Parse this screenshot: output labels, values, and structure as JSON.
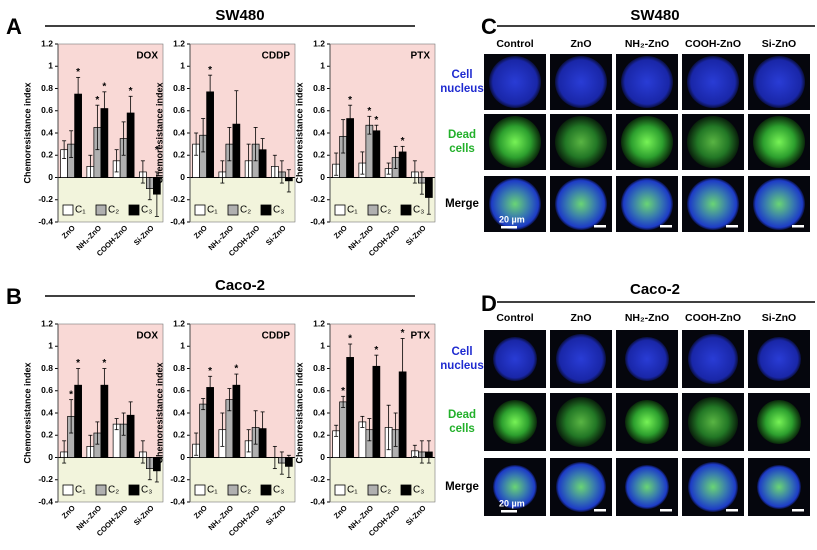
{
  "panels": [
    {
      "letter": "A",
      "cell_line": "SW480"
    },
    {
      "letter": "B",
      "cell_line": "Caco-2"
    }
  ],
  "images": [
    {
      "letter": "C",
      "cell_line": "SW480",
      "columns": [
        "Control",
        "ZnO",
        "NH₂-ZnO",
        "COOH-ZnO",
        "Si-ZnO"
      ],
      "rows": [
        [
          "Cell",
          "nucleus"
        ],
        [
          "Dead",
          "cells"
        ],
        [
          "Merge"
        ]
      ],
      "scale_bar": "20 µm"
    },
    {
      "letter": "D",
      "cell_line": "Caco-2",
      "columns": [
        "Control",
        "ZnO",
        "NH₂-ZnO",
        "COOH-ZnO",
        "Si-ZnO"
      ],
      "rows": [
        [
          "Cell",
          "nucleus"
        ],
        [
          "Dead",
          "cells"
        ],
        [
          "Merge"
        ]
      ],
      "scale_bar": "20 µm"
    }
  ],
  "chart_data": [
    {
      "type": "bar",
      "title": "DOX",
      "y_label": "Chemoresistance index",
      "categories": [
        "ZnO",
        "NH₂-ZnO",
        "COOH-ZnO",
        "Si-ZnO"
      ],
      "series": [
        {
          "name": "C₁",
          "color": "#ffffff",
          "values": [
            0.25,
            0.1,
            0.15,
            0.05
          ],
          "errors": [
            0.08,
            0.1,
            0.1,
            0.1
          ],
          "significance": [
            null,
            null,
            null,
            null
          ]
        },
        {
          "name": "C₂",
          "color": "#b0b0b0",
          "values": [
            0.3,
            0.45,
            0.35,
            -0.1
          ],
          "errors": [
            0.12,
            0.2,
            0.15,
            0.1
          ],
          "significance": [
            null,
            "*",
            null,
            null
          ]
        },
        {
          "name": "C₃",
          "color": "#000000",
          "values": [
            0.75,
            0.62,
            0.58,
            -0.15
          ],
          "errors": [
            0.15,
            0.15,
            0.15,
            0.2
          ],
          "significance": [
            "*",
            "*",
            "*",
            "*"
          ]
        }
      ],
      "ylim": [
        -0.4,
        1.2
      ],
      "yticks": [
        -0.4,
        -0.2,
        0,
        0.2,
        0.4,
        0.6,
        0.8,
        1,
        1.2
      ],
      "grid": false,
      "legend_corner": "bottom"
    },
    {
      "type": "bar",
      "title": "CDDP",
      "y_label": "Chemoresistance index",
      "categories": [
        "ZnO",
        "NH₂-ZnO",
        "COOH-ZnO",
        "Si-ZnO"
      ],
      "series": [
        {
          "name": "C₁",
          "color": "#ffffff",
          "values": [
            0.3,
            0.05,
            0.15,
            0.1
          ],
          "errors": [
            0.1,
            0.1,
            0.15,
            0.1
          ],
          "significance": [
            null,
            null,
            null,
            null
          ]
        },
        {
          "name": "C₂",
          "color": "#b0b0b0",
          "values": [
            0.38,
            0.3,
            0.3,
            0.05
          ],
          "errors": [
            0.15,
            0.15,
            0.15,
            0.1
          ],
          "significance": [
            null,
            null,
            null,
            null
          ]
        },
        {
          "name": "C₃",
          "color": "#000000",
          "values": [
            0.77,
            0.48,
            0.25,
            -0.03
          ],
          "errors": [
            0.15,
            0.3,
            0.1,
            0.1
          ],
          "significance": [
            "*",
            null,
            null,
            null
          ]
        }
      ],
      "ylim": [
        -0.4,
        1.2
      ],
      "yticks": [
        -0.4,
        -0.2,
        0,
        0.2,
        0.4,
        0.6,
        0.8,
        1,
        1.2
      ],
      "grid": false,
      "legend_corner": "bottom"
    },
    {
      "type": "bar",
      "title": "PTX",
      "y_label": "Chemoresistance index",
      "categories": [
        "ZnO",
        "NH₂-ZnO",
        "COOH-ZnO",
        "Si-ZnO"
      ],
      "series": [
        {
          "name": "C₁",
          "color": "#ffffff",
          "values": [
            0.12,
            0.13,
            0.08,
            0.05
          ],
          "errors": [
            0.1,
            0.1,
            0.05,
            0.1
          ],
          "significance": [
            null,
            null,
            null,
            null
          ]
        },
        {
          "name": "C₂",
          "color": "#b0b0b0",
          "values": [
            0.37,
            0.47,
            0.18,
            -0.05
          ],
          "errors": [
            0.15,
            0.08,
            0.1,
            0.1
          ],
          "significance": [
            null,
            "*",
            null,
            null
          ]
        },
        {
          "name": "C₃",
          "color": "#000000",
          "values": [
            0.53,
            0.42,
            0.23,
            -0.18
          ],
          "errors": [
            0.12,
            0.05,
            0.05,
            0.15
          ],
          "significance": [
            "*",
            "*",
            "*",
            null
          ]
        }
      ],
      "ylim": [
        -0.4,
        1.2
      ],
      "yticks": [
        -0.4,
        -0.2,
        0,
        0.2,
        0.4,
        0.6,
        0.8,
        1,
        1.2
      ],
      "grid": false,
      "legend_corner": "bottom"
    },
    {
      "type": "bar",
      "title": "DOX",
      "y_label": "Chemoresistance index",
      "categories": [
        "ZnO",
        "NH₂-ZnO",
        "COOH-ZnO",
        "Si-ZnO"
      ],
      "series": [
        {
          "name": "C₁",
          "color": "#ffffff",
          "values": [
            0.05,
            0.1,
            0.3,
            0.05
          ],
          "errors": [
            0.1,
            0.1,
            0.05,
            0.1
          ],
          "significance": [
            null,
            null,
            null,
            null
          ]
        },
        {
          "name": "C₂",
          "color": "#b0b0b0",
          "values": [
            0.37,
            0.22,
            0.3,
            -0.1
          ],
          "errors": [
            0.15,
            0.1,
            0.1,
            0.1
          ],
          "significance": [
            "*",
            null,
            null,
            null
          ]
        },
        {
          "name": "C₃",
          "color": "#000000",
          "values": [
            0.65,
            0.65,
            0.38,
            -0.12
          ],
          "errors": [
            0.15,
            0.15,
            0.12,
            0.1
          ],
          "significance": [
            "*",
            "*",
            null,
            null
          ]
        }
      ],
      "ylim": [
        -0.4,
        1.2
      ],
      "yticks": [
        -0.4,
        -0.2,
        0,
        0.2,
        0.4,
        0.6,
        0.8,
        1,
        1.2
      ],
      "grid": false,
      "legend_corner": "bottom"
    },
    {
      "type": "bar",
      "title": "CDDP",
      "y_label": "Chemoresistance index",
      "categories": [
        "ZnO",
        "NH₂-ZnO",
        "COOH-ZnO",
        "Si-ZnO"
      ],
      "series": [
        {
          "name": "C₁",
          "color": "#ffffff",
          "values": [
            0.12,
            0.25,
            0.15,
            0
          ],
          "errors": [
            0.1,
            0.15,
            0.1,
            0.1
          ],
          "significance": [
            null,
            null,
            null,
            null
          ]
        },
        {
          "name": "C₂",
          "color": "#b0b0b0",
          "values": [
            0.48,
            0.52,
            0.27,
            -0.05
          ],
          "errors": [
            0.05,
            0.1,
            0.15,
            0.1
          ],
          "significance": [
            null,
            null,
            null,
            null
          ]
        },
        {
          "name": "C₃",
          "color": "#000000",
          "values": [
            0.63,
            0.65,
            0.26,
            -0.08
          ],
          "errors": [
            0.1,
            0.1,
            0.15,
            0.1
          ],
          "significance": [
            "*",
            "*",
            null,
            null
          ]
        }
      ],
      "ylim": [
        -0.4,
        1.2
      ],
      "yticks": [
        -0.4,
        -0.2,
        0,
        0.2,
        0.4,
        0.6,
        0.8,
        1,
        1.2
      ],
      "grid": false,
      "legend_corner": "bottom"
    },
    {
      "type": "bar",
      "title": "PTX",
      "y_label": "Chemoresistance index",
      "categories": [
        "ZnO",
        "NH₂-ZnO",
        "COOH-ZnO",
        "Si-ZnO"
      ],
      "series": [
        {
          "name": "C₁",
          "color": "#ffffff",
          "values": [
            0.24,
            0.32,
            0.27,
            0.06
          ],
          "errors": [
            0.05,
            0.05,
            0.2,
            0.05
          ],
          "significance": [
            null,
            null,
            null,
            null
          ]
        },
        {
          "name": "C₂",
          "color": "#b0b0b0",
          "values": [
            0.5,
            0.25,
            0.25,
            0.05
          ],
          "errors": [
            0.05,
            0.1,
            0.15,
            0.1
          ],
          "significance": [
            "*",
            null,
            null,
            null
          ]
        },
        {
          "name": "C₃",
          "color": "#000000",
          "values": [
            0.9,
            0.82,
            0.77,
            0.05
          ],
          "errors": [
            0.12,
            0.1,
            0.3,
            0.1
          ],
          "significance": [
            "*",
            "*",
            "*",
            null
          ]
        }
      ],
      "ylim": [
        -0.4,
        1.2
      ],
      "yticks": [
        -0.4,
        -0.2,
        0,
        0.2,
        0.4,
        0.6,
        0.8,
        1,
        1.2
      ],
      "grid": false,
      "legend_corner": "bottom"
    }
  ]
}
